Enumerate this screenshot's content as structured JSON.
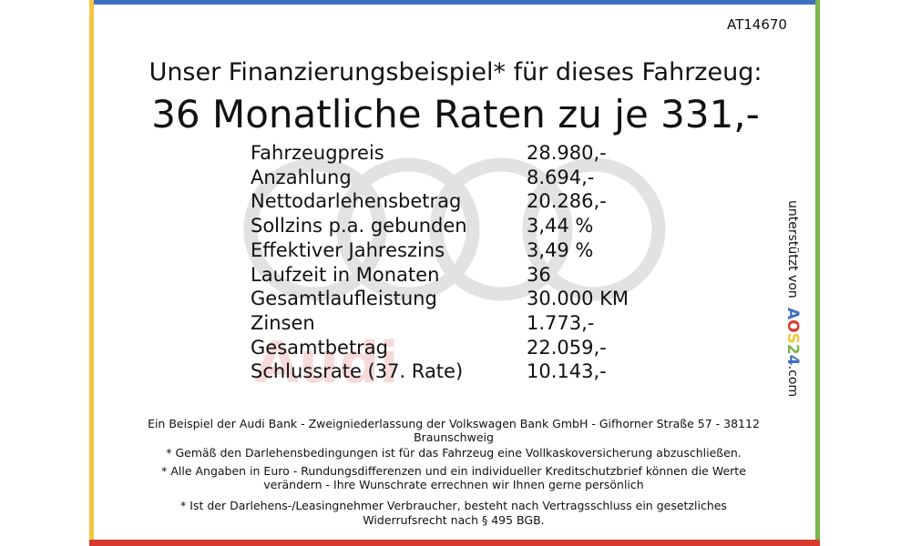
{
  "header": {
    "id": "AT14670",
    "title": "Unser Finanzierungsbeispiel* für dieses Fahrzeug:",
    "headline": "36 Monatliche Raten zu je 331,-"
  },
  "table": {
    "rows": [
      [
        "Fahrzeugpreis",
        "28.980,-"
      ],
      [
        "Anzahlung",
        "8.694,-"
      ],
      [
        "Nettodarlehensbetrag",
        "20.286,-"
      ],
      [
        "Sollzins p.a. gebunden",
        "3,44 %"
      ],
      [
        "Effektiver Jahreszins",
        "3,49 %"
      ],
      [
        "Laufzeit in Monaten",
        "36"
      ],
      [
        "Gesamtlaufleistung",
        "30.000 KM"
      ],
      [
        "Zinsen",
        "1.773,-"
      ],
      [
        "Gesamtbetrag",
        "22.059,-"
      ],
      [
        "Schlussrate (37. Rate)",
        "10.143,-"
      ]
    ]
  },
  "watermark": {
    "brand": "Audi"
  },
  "side": {
    "text": "unterstützt von",
    "brand": [
      "A",
      "O",
      "S",
      "2",
      "4"
    ],
    "domain": ".com"
  },
  "footer": {
    "lines": [
      "Ein Beispiel der Audi Bank - Zweigniederlassung der Volkswagen Bank GmbH - Gifhorner Straße 57 - 38112",
      "Braunschweig",
      "* Gemäß den Darlehensbedingungen ist für das Fahrzeug eine Vollkaskoversicherung abzuschließen.",
      "* Alle Angaben in Euro - Rundungsdifferenzen und ein individueller Kreditschutzbrief können die Werte",
      "verändern - Ihre Wunschrate errechnen wir Ihnen gerne persönlich",
      "* Ist der Darlehens-/Leasingnehmer Verbraucher, besteht nach Vertragsschluss ein gesetzliches",
      "Widerrufsrecht nach § 495 BGB."
    ]
  }
}
